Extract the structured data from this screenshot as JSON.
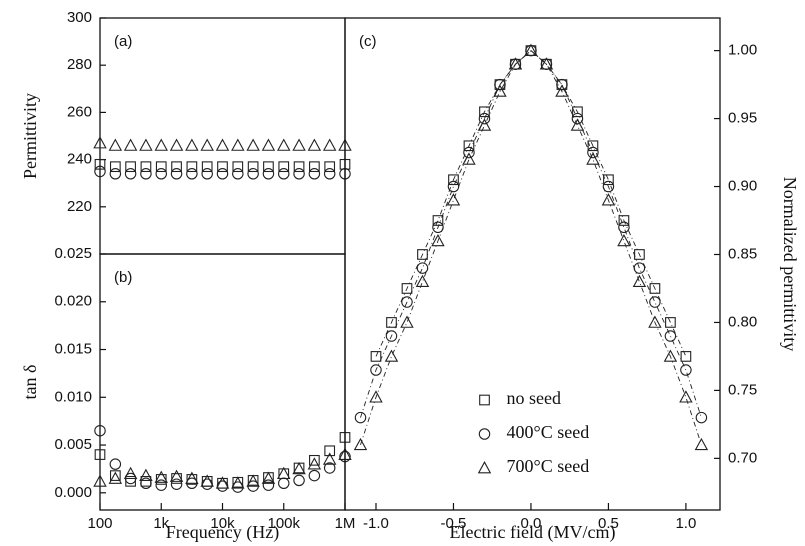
{
  "chart_data": [
    {
      "type": "scatter",
      "panel_label": "(a)",
      "ylabel": "Permittivity",
      "xscale": "log",
      "xlim": [
        100,
        1000000
      ],
      "ylim": [
        200,
        300
      ],
      "yticks": [
        220,
        240,
        260,
        280,
        300
      ],
      "x": [
        100,
        178,
        316,
        562,
        1000,
        1778,
        3162,
        5623,
        10000,
        17783,
        31623,
        56234,
        100000,
        177828,
        316228,
        562341,
        1000000
      ],
      "series": [
        {
          "marker": "square",
          "color": "#222222",
          "values": [
            238,
            237,
            237,
            237,
            237,
            237,
            237,
            237,
            237,
            237,
            237,
            237,
            237,
            237,
            237,
            237,
            238
          ]
        },
        {
          "marker": "circle",
          "color": "#222222",
          "values": [
            235,
            234,
            234,
            234,
            234,
            234,
            234,
            234,
            234,
            234,
            234,
            234,
            234,
            234,
            234,
            234,
            234
          ]
        },
        {
          "marker": "triangle",
          "color": "#222222",
          "values": [
            247,
            246,
            246,
            246,
            246,
            246,
            246,
            246,
            246,
            246,
            246,
            246,
            246,
            246,
            246,
            246,
            246
          ]
        }
      ]
    },
    {
      "type": "scatter",
      "panel_label": "(b)",
      "ylabel": "tan δ",
      "xlabel": "Frequency (Hz)",
      "xscale": "log",
      "xlim": [
        100,
        1000000
      ],
      "ylim": [
        -0.0018,
        0.025
      ],
      "xticks": [
        100,
        {
          "value": 1000,
          "label": "1k"
        },
        {
          "value": 10000,
          "label": "10k"
        },
        {
          "value": 100000,
          "label": "100k"
        },
        {
          "value": 1000000,
          "label": "1M"
        }
      ],
      "yticks": [
        {
          "value": 0,
          "label": "0.000"
        },
        {
          "value": 0.005,
          "label": "0.005"
        },
        {
          "value": 0.01,
          "label": "0.010"
        },
        {
          "value": 0.015,
          "label": "0.015"
        },
        {
          "value": 0.02,
          "label": "0.020"
        },
        {
          "value": 0.025,
          "label": "0.025"
        }
      ],
      "x": [
        100,
        178,
        316,
        562,
        1000,
        1778,
        3162,
        5623,
        10000,
        17783,
        31623,
        56234,
        100000,
        177828,
        316228,
        562341,
        1000000
      ],
      "series": [
        {
          "marker": "square",
          "color": "#222222",
          "values": [
            0.004,
            0.0018,
            0.0012,
            0.0012,
            0.0014,
            0.0015,
            0.0014,
            0.0012,
            0.001,
            0.0011,
            0.0013,
            0.0016,
            0.002,
            0.0026,
            0.0034,
            0.0044,
            0.0058
          ]
        },
        {
          "marker": "circle",
          "color": "#222222",
          "values": [
            0.0065,
            0.003,
            0.0015,
            0.001,
            0.0008,
            0.0009,
            0.001,
            0.0009,
            0.0007,
            0.0006,
            0.0007,
            0.0008,
            0.001,
            0.0013,
            0.0018,
            0.0026,
            0.0038
          ]
        },
        {
          "marker": "triangle",
          "color": "#222222",
          "values": [
            0.0012,
            0.0015,
            0.002,
            0.0018,
            0.0016,
            0.0017,
            0.0015,
            0.0012,
            0.001,
            0.001,
            0.0012,
            0.0015,
            0.002,
            0.0025,
            0.003,
            0.0035,
            0.004
          ]
        }
      ]
    },
    {
      "type": "scatter",
      "panel_label": "(c)",
      "ylabel": "Normalized permittivity",
      "xlabel": "Electric field (MV/cm)",
      "yaxis_position": "right",
      "lines": "dashdot",
      "legend": "lower center",
      "xlim": [
        -1.2,
        1.22
      ],
      "ylim": [
        0.662,
        1.024
      ],
      "xticks": [
        {
          "value": -1,
          "label": "-1.0"
        },
        -0.5,
        {
          "value": 0,
          "label": "0.0"
        },
        0.5,
        {
          "value": 1,
          "label": "1.0"
        }
      ],
      "yticks": [
        {
          "value": 0.7,
          "label": "0.70"
        },
        0.75,
        {
          "value": 0.8,
          "label": "0.80"
        },
        0.85,
        {
          "value": 0.9,
          "label": "0.90"
        },
        0.95,
        {
          "value": 1,
          "label": "1.00"
        }
      ],
      "x": [
        -1.1,
        -1.0,
        -0.9,
        -0.8,
        -0.7,
        -0.6,
        -0.5,
        -0.4,
        -0.3,
        -0.2,
        -0.1,
        0,
        0.1,
        0.2,
        0.3,
        0.4,
        0.5,
        0.6,
        0.7,
        0.8,
        0.9,
        1.0,
        1.1
      ],
      "series": [
        {
          "name": "no seed",
          "marker": "square",
          "color": "#222222",
          "values": [
            null,
            0.775,
            0.8,
            0.825,
            0.85,
            0.875,
            0.905,
            0.93,
            0.955,
            0.975,
            0.99,
            1.0,
            0.99,
            0.975,
            0.955,
            0.93,
            0.905,
            0.875,
            0.85,
            0.825,
            0.8,
            0.775,
            null
          ]
        },
        {
          "name": "400°C seed",
          "marker": "circle",
          "color": "#222222",
          "values": [
            0.73,
            0.765,
            0.79,
            0.815,
            0.84,
            0.87,
            0.9,
            0.925,
            0.95,
            0.975,
            0.99,
            1.0,
            0.99,
            0.975,
            0.95,
            0.925,
            0.9,
            0.87,
            0.84,
            0.815,
            0.79,
            0.765,
            0.73
          ]
        },
        {
          "name": "700°C seed",
          "marker": "triangle",
          "color": "#222222",
          "values": [
            0.71,
            0.745,
            0.775,
            0.8,
            0.83,
            0.86,
            0.89,
            0.92,
            0.945,
            0.97,
            0.99,
            1.0,
            0.99,
            0.97,
            0.945,
            0.92,
            0.89,
            0.86,
            0.83,
            0.8,
            0.775,
            0.745,
            0.71
          ]
        }
      ]
    }
  ]
}
